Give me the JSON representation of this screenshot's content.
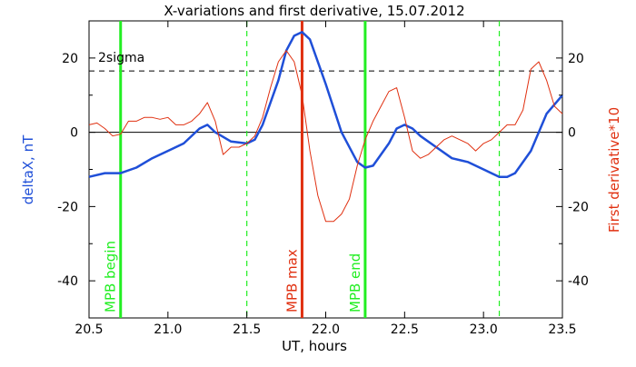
{
  "chart_data": {
    "type": "line",
    "title": "X-variations and first derivative, 15.07.2012",
    "xlabel": "UT, hours",
    "ylabel_left": "deltaX, nT",
    "ylabel_right": "First derivative*10",
    "xlim": [
      20.5,
      23.5
    ],
    "ylim": [
      -50,
      30
    ],
    "x_ticks": [
      "20.5",
      "21.0",
      "21.5",
      "22.0",
      "22.5",
      "23.0",
      "23.5"
    ],
    "y_ticks_left": [
      "20",
      "0",
      "-20",
      "-40"
    ],
    "y_ticks_right": [
      "20",
      "0",
      "-20",
      "-40"
    ],
    "colors": {
      "deltaX": "#1f4fd8",
      "derivative": "#e03010",
      "green": "#22ee22",
      "red_marker": "#e03010",
      "black": "#000000"
    },
    "series": [
      {
        "key": "deltaX",
        "x": [
          20.5,
          20.6,
          20.7,
          20.8,
          20.9,
          21.0,
          21.1,
          21.2,
          21.25,
          21.3,
          21.4,
          21.5,
          21.55,
          21.6,
          21.7,
          21.75,
          21.8,
          21.85,
          21.9,
          22.0,
          22.1,
          22.2,
          22.25,
          22.3,
          22.4,
          22.45,
          22.5,
          22.55,
          22.6,
          22.7,
          22.8,
          22.9,
          23.0,
          23.1,
          23.15,
          23.2,
          23.3,
          23.4,
          23.5
        ],
        "y": [
          -12,
          -11,
          -11,
          -9.5,
          -7,
          -5,
          -3,
          1,
          2,
          0,
          -2.5,
          -3,
          -2,
          2,
          14,
          22,
          26,
          27,
          25,
          13,
          0,
          -8,
          -9.5,
          -9,
          -3,
          1,
          2,
          1,
          -1,
          -4,
          -7,
          -8,
          -10,
          -12,
          -12,
          -11,
          -5,
          5,
          10
        ]
      },
      {
        "key": "derivative",
        "x": [
          20.5,
          20.55,
          20.6,
          20.65,
          20.7,
          20.75,
          20.8,
          20.85,
          20.9,
          20.95,
          21.0,
          21.05,
          21.1,
          21.15,
          21.2,
          21.25,
          21.3,
          21.35,
          21.4,
          21.45,
          21.5,
          21.55,
          21.6,
          21.65,
          21.7,
          21.75,
          21.8,
          21.85,
          21.9,
          21.95,
          22.0,
          22.05,
          22.1,
          22.15,
          22.2,
          22.25,
          22.3,
          22.35,
          22.4,
          22.45,
          22.5,
          22.55,
          22.6,
          22.65,
          22.7,
          22.75,
          22.8,
          22.85,
          22.9,
          22.95,
          23.0,
          23.05,
          23.1,
          23.15,
          23.2,
          23.25,
          23.3,
          23.35,
          23.4,
          23.45,
          23.5
        ],
        "y": [
          2,
          2.5,
          1,
          -1,
          -0.5,
          3,
          3,
          4,
          4,
          3.5,
          4,
          2,
          2,
          3,
          5,
          8,
          3,
          -6,
          -4,
          -4,
          -3,
          -1,
          4,
          12,
          19,
          22,
          19,
          10,
          -5,
          -17,
          -24,
          -24,
          -22,
          -18,
          -9,
          -2,
          3,
          7,
          11,
          12,
          4,
          -5,
          -7,
          -6,
          -4,
          -2,
          -1,
          -2,
          -3,
          -5,
          -3,
          -2,
          0,
          2,
          2,
          6,
          17,
          19,
          14,
          7,
          5
        ]
      }
    ],
    "threshold": {
      "label": "2sigma",
      "y": 16.5
    },
    "zero_line": 0,
    "markers": [
      {
        "label": "MPB begin",
        "x": 20.7,
        "style": "solid",
        "color": "#22ee22"
      },
      {
        "label": "",
        "x": 21.5,
        "style": "dashed",
        "color": "#22ee22"
      },
      {
        "label": "MPB max",
        "x": 21.85,
        "style": "solid",
        "color": "#e03010"
      },
      {
        "label": "MPB end",
        "x": 22.25,
        "style": "solid",
        "color": "#22ee22"
      },
      {
        "label": "",
        "x": 23.1,
        "style": "dashed",
        "color": "#22ee22"
      }
    ]
  }
}
